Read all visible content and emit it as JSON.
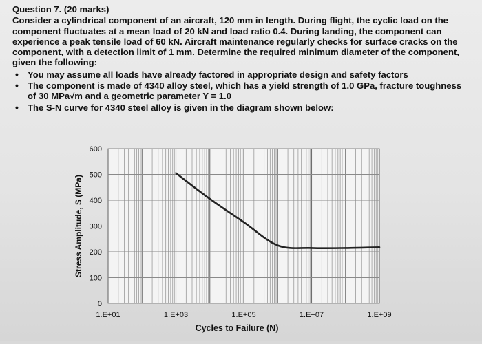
{
  "question": {
    "title": "Question 7. (20 marks)",
    "body": "Consider a cylindrical component of an aircraft, 120 mm in length. During flight, the cyclic load on the component fluctuates at a mean load of 20 kN and load ratio 0.4. During landing, the component can experience a peak tensile load of 60 kN. Aircraft maintenance regularly checks for surface cracks on the component, with a detection limit of 1 mm. Determine the required minimum diameter of the component, given the following:",
    "bullets": [
      "You may assume all loads have already factored in appropriate design and safety factors",
      "The component is made of 4340 alloy steel, which has a yield strength of 1.0 GPa, fracture toughness of 30 MPa√m and a geometric parameter Y = 1.0",
      "The S-N curve for 4340 steel alloy is given in the diagram shown below:"
    ]
  },
  "chart_data": {
    "type": "line",
    "x_scale": "log",
    "xlabel": "Cycles to Failure (N)",
    "ylabel": "Stress Amplitude, S (MPa)",
    "xlim": [
      10,
      1000000000
    ],
    "ylim": [
      0,
      600
    ],
    "x_ticks": [
      "1.E+01",
      "1.E+03",
      "1.E+05",
      "1.E+07",
      "1.E+09"
    ],
    "y_ticks": [
      "0",
      "100",
      "200",
      "300",
      "400",
      "500",
      "600"
    ],
    "grid": true,
    "series": [
      {
        "color": "#222222",
        "x": [
          1000,
          10000,
          100000,
          1000000,
          10000000,
          100000000,
          1000000000
        ],
        "y": [
          505,
          405,
          315,
          225,
          215,
          215,
          218
        ]
      }
    ]
  }
}
